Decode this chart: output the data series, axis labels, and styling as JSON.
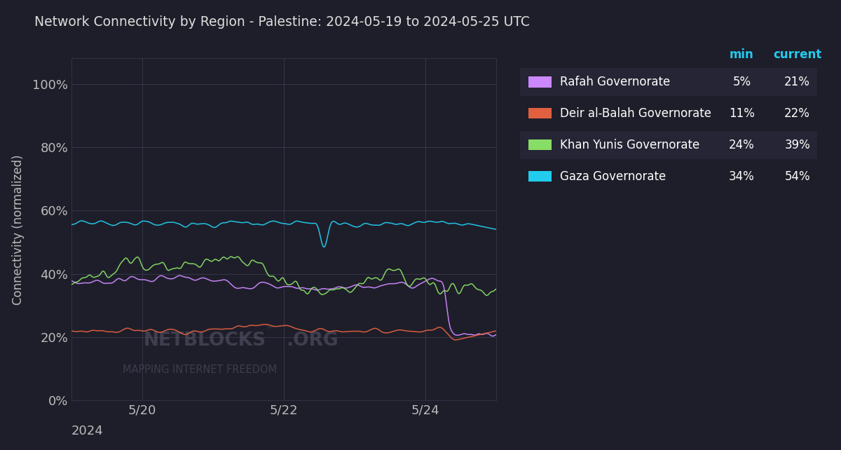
{
  "title": "Network Connectivity by Region - Palestine: 2024-05-19 to 2024-05-25 UTC",
  "ylabel": "Connectivity (normalized)",
  "bg_color": "#1e1e2a",
  "grid_color": "#3a3a50",
  "text_color": "#bbbbbb",
  "title_color": "#dddddd",
  "x_tick_labels": [
    "5/20",
    "5/22",
    "5/24"
  ],
  "x_tick_positions": [
    1,
    3,
    5
  ],
  "x_bottom_label": "2024",
  "ytick_labels": [
    "0%",
    "20%",
    "40%",
    "60%",
    "80%",
    "100%"
  ],
  "ytick_vals": [
    0,
    20,
    40,
    60,
    80,
    100
  ],
  "ylim": [
    0,
    108
  ],
  "xlim": [
    0,
    6
  ],
  "n_points": 350,
  "header_min": "min",
  "header_current": "current",
  "header_color": "#22ccee",
  "legend_items": [
    {
      "name": "Rafah Governorate",
      "color": "#cc88ff",
      "min": "5%",
      "current": "21%"
    },
    {
      "name": "Deir al-Balah Governorate",
      "color": "#e06040",
      "min": "11%",
      "current": "22%"
    },
    {
      "name": "Khan Yunis Governorate",
      "color": "#88dd66",
      "min": "24%",
      "current": "39%"
    },
    {
      "name": "Gaza Governorate",
      "color": "#22ccee",
      "min": "34%",
      "current": "54%"
    }
  ],
  "watermark_line1": "NETBLOCKS",
  "watermark_line2": "MAPPING INTERNET FREEDOM"
}
